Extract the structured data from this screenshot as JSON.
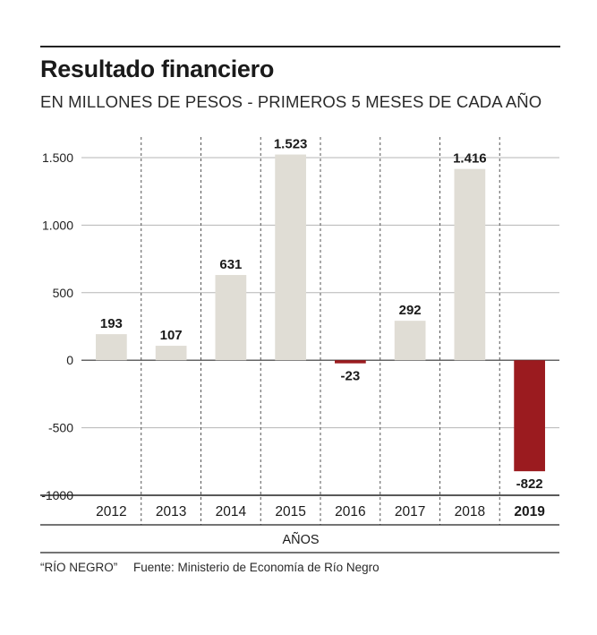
{
  "header": {
    "title": "Resultado financiero",
    "subtitle": "EN MILLONES DE PESOS - PRIMEROS 5 MESES DE CADA AÑO"
  },
  "footer": {
    "credit": "“RÍO NEGRO”",
    "source": "Fuente: Ministerio de Economía de Río Negro"
  },
  "colors": {
    "positive": "#e0ddd5",
    "negative": "#9b1b1f",
    "grid": "#b5b5b5",
    "axis": "#333333"
  },
  "chart_data": {
    "type": "bar",
    "title": "Resultado financiero",
    "subtitle": "EN MILLONES DE PESOS - PRIMEROS 5 MESES DE CADA AÑO",
    "xlabel": "AÑOS",
    "ylabel": "",
    "categories": [
      "2012",
      "2013",
      "2014",
      "2015",
      "2016",
      "2017",
      "2018",
      "2019"
    ],
    "values": [
      193,
      107,
      631,
      1523,
      -23,
      292,
      1416,
      -822
    ],
    "value_labels": [
      "193",
      "107",
      "631",
      "1.523",
      "-23",
      "292",
      "1.416",
      "-822"
    ],
    "highlight_category": "2019",
    "ylim": [
      -1000,
      1500
    ],
    "yticks": [
      1500,
      1000,
      500,
      0,
      -500,
      -1000
    ],
    "ytick_labels": [
      "1.500",
      "1.000",
      "500",
      "0",
      "-500",
      "-1000"
    ],
    "grid": true,
    "legend": "none"
  }
}
